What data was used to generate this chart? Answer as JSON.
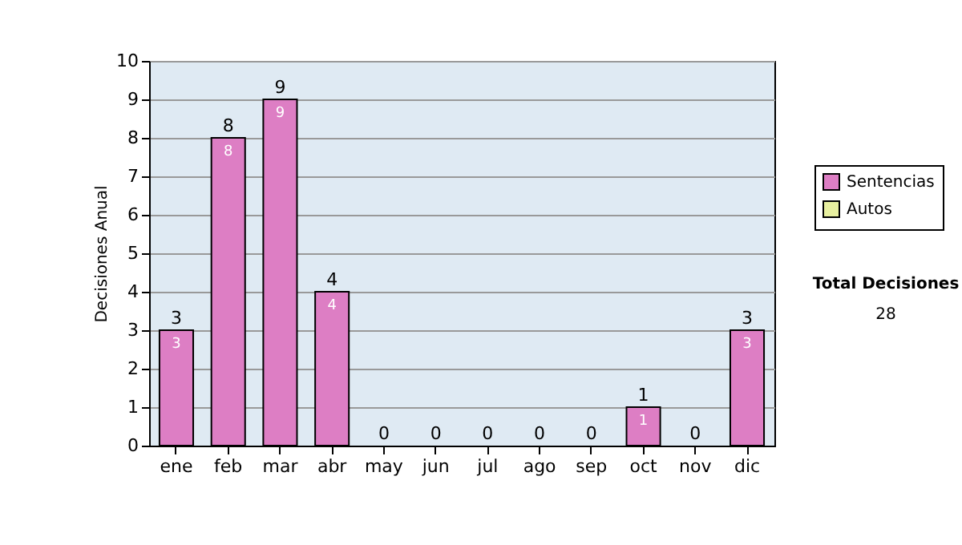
{
  "chart_data": {
    "type": "bar",
    "stacked": true,
    "ylabel": "Decisiones Anual",
    "categories": [
      "ene",
      "feb",
      "mar",
      "abr",
      "may",
      "jun",
      "jul",
      "ago",
      "sep",
      "oct",
      "nov",
      "dic"
    ],
    "series": [
      {
        "name": "Sentencias",
        "color": "#dd7ec4",
        "values": [
          3,
          8,
          9,
          4,
          0,
          0,
          0,
          0,
          0,
          1,
          0,
          3
        ],
        "value_labels": [
          "3",
          "8",
          "9",
          "4",
          null,
          null,
          null,
          null,
          null,
          "1",
          null,
          "3"
        ]
      },
      {
        "name": "Autos",
        "color": "#e8f0a0",
        "values": [
          0,
          0,
          0,
          0,
          0,
          0,
          0,
          0,
          0,
          0,
          0,
          0
        ]
      }
    ],
    "totals": [
      "3",
      "8",
      "9",
      "4",
      "0",
      "0",
      "0",
      "0",
      "0",
      "1",
      "0",
      "3"
    ],
    "ylim": [
      0,
      10
    ],
    "yticks": [
      0,
      1,
      2,
      3,
      4,
      5,
      6,
      7,
      8,
      9,
      10
    ],
    "grid": "y",
    "legend": "right",
    "annotations": [
      "Total Decisiones",
      "28"
    ]
  }
}
